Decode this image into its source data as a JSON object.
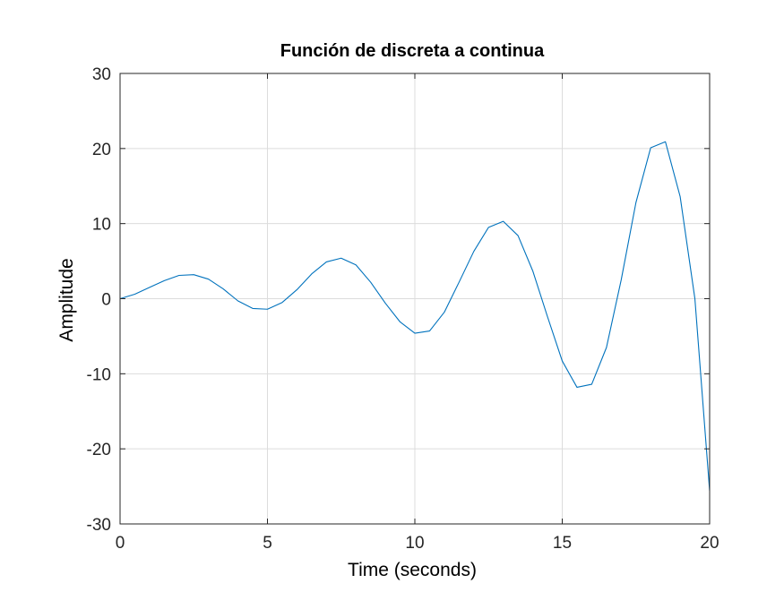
{
  "chart_data": {
    "type": "line",
    "title": "Función de discreta a continua",
    "xlabel": "Time (seconds)",
    "ylabel": "Amplitude",
    "xlim": [
      0,
      20
    ],
    "ylim": [
      -30,
      30
    ],
    "xticks": [
      0,
      5,
      10,
      15,
      20
    ],
    "yticks": [
      -30,
      -20,
      -10,
      0,
      10,
      20,
      30
    ],
    "xtick_labels": [
      "0",
      "5",
      "10",
      "15",
      "20"
    ],
    "ytick_labels": [
      "-30",
      "-20",
      "-10",
      "0",
      "10",
      "20",
      "30"
    ],
    "grid": true,
    "colors": {
      "line": "#0072BD",
      "grid": "#dcdcdc",
      "axes": "#262626"
    },
    "series": [
      {
        "x": [
          0,
          0.5,
          1,
          1.5,
          2,
          2.5,
          3,
          3.5,
          4,
          4.5,
          5,
          5.5,
          6,
          6.5,
          7,
          7.5,
          8,
          8.5,
          9,
          9.5,
          10,
          10.5,
          11,
          11.5,
          12,
          12.5,
          13,
          13.5,
          14,
          14.5,
          15,
          15.5,
          16,
          16.5,
          17,
          17.5,
          18,
          18.5,
          19,
          19.5,
          20
        ],
        "y": [
          0,
          0.6,
          1.5,
          2.4,
          3.1,
          3.2,
          2.6,
          1.3,
          -0.3,
          -1.3,
          -1.4,
          -0.5,
          1.2,
          3.3,
          4.9,
          5.4,
          4.5,
          2.2,
          -0.6,
          -3.1,
          -4.6,
          -4.3,
          -1.8,
          2.2,
          6.3,
          9.5,
          10.3,
          8.4,
          3.7,
          -2.4,
          -8.3,
          -11.8,
          -11.4,
          -6.5,
          2.5,
          12.8,
          20.1,
          20.9,
          13.6,
          0.0,
          -25.6
        ]
      }
    ]
  }
}
